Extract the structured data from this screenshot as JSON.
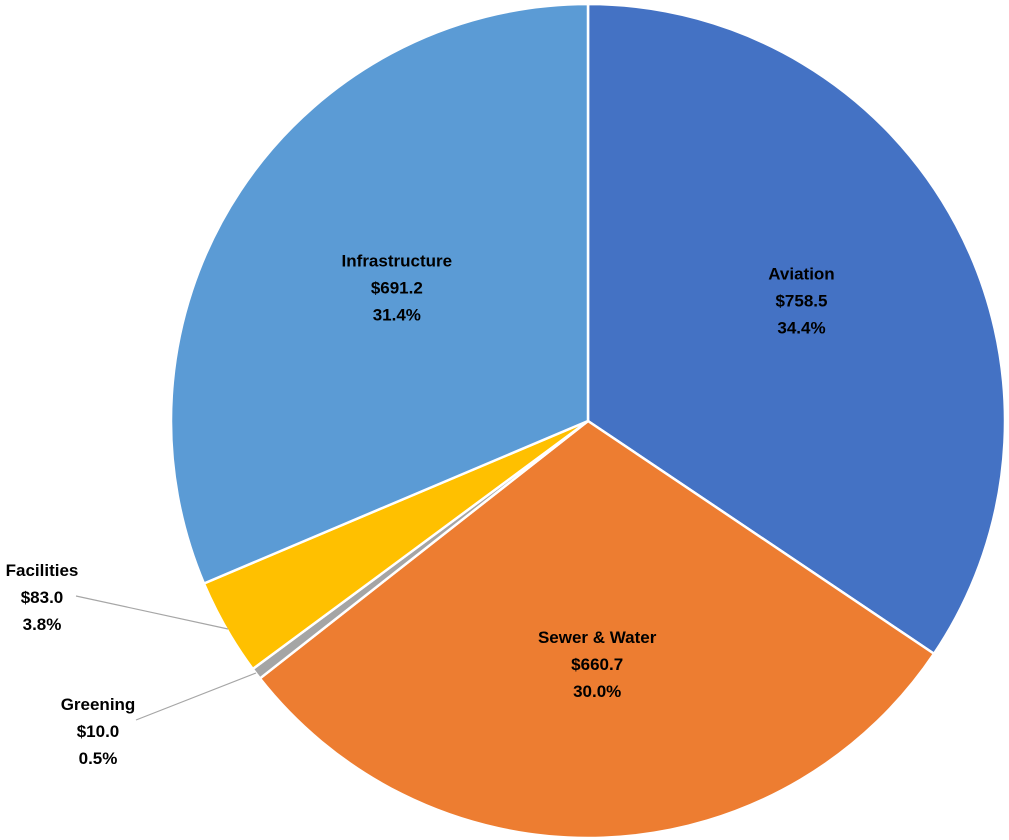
{
  "chart_data": {
    "type": "pie",
    "title": "",
    "slices": [
      {
        "name": "Aviation",
        "value": 758.5,
        "value_label": "$758.5",
        "percent_label": "34.4%",
        "color": "#4472C4"
      },
      {
        "name": "Sewer & Water",
        "value": 660.7,
        "value_label": "$660.7",
        "percent_label": "30.0%",
        "color": "#ED7D31"
      },
      {
        "name": "Greening",
        "value": 10.0,
        "value_label": "$10.0",
        "percent_label": "0.5%",
        "color": "#A5A5A5"
      },
      {
        "name": "Facilities",
        "value": 83.0,
        "value_label": "$83.0",
        "percent_label": "3.8%",
        "color": "#FFC000"
      },
      {
        "name": "Infrastructure",
        "value": 691.2,
        "value_label": "$691.2",
        "percent_label": "31.4%",
        "color": "#5B9BD5"
      }
    ],
    "start_angle": "12 o'clock",
    "direction": "clockwise",
    "slice_border_color": "#FFFFFF",
    "legend": "none"
  }
}
